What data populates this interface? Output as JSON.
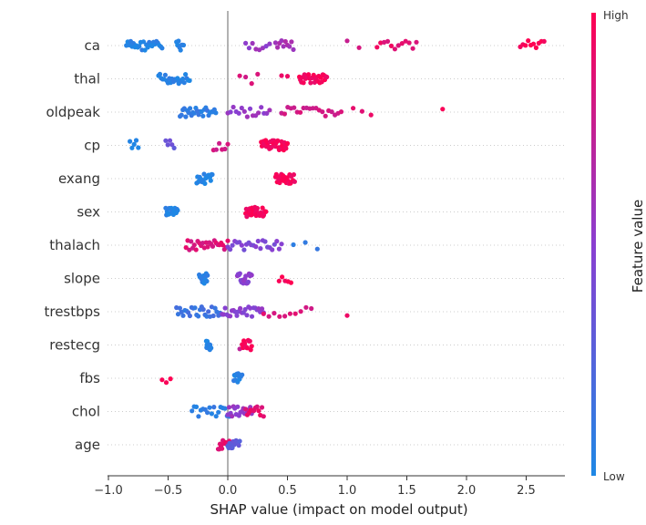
{
  "chart_data": {
    "type": "scatter",
    "subtype": "shap-beeswarm",
    "xlabel": "SHAP value (impact on model output)",
    "xlim": [
      -1.0,
      2.8
    ],
    "xticks": [
      -1.0,
      -0.5,
      0.0,
      0.5,
      1.0,
      1.5,
      2.0,
      2.5
    ],
    "xtick_labels": [
      "−1.0",
      "−0.5",
      "0.0",
      "0.5",
      "1.0",
      "1.5",
      "2.0",
      "2.5"
    ],
    "zero_line": 0.0,
    "colorbar": {
      "title": "Feature value",
      "high_label": "High",
      "low_label": "Low",
      "low_color": "#1e88e5",
      "high_color": "#ff0052"
    },
    "features": [
      {
        "name": "ca",
        "clusters": [
          {
            "min": -0.85,
            "max": -0.55,
            "n": 26,
            "v": 0.03
          },
          {
            "min": -0.43,
            "max": -0.37,
            "n": 8,
            "v": 0.05
          },
          {
            "min": 0.15,
            "max": 0.35,
            "n": 8,
            "v": 0.55
          },
          {
            "min": 0.4,
            "max": 0.55,
            "n": 10,
            "v": 0.6
          },
          {
            "min": 1.0,
            "max": 1.1,
            "n": 2,
            "v": 0.8
          },
          {
            "min": 1.25,
            "max": 1.58,
            "n": 12,
            "v": 0.9
          },
          {
            "min": 2.45,
            "max": 2.65,
            "n": 10,
            "v": 1.0
          }
        ]
      },
      {
        "name": "thal",
        "clusters": [
          {
            "min": -0.58,
            "max": -0.32,
            "n": 24,
            "v": 0.03
          },
          {
            "min": 0.1,
            "max": 0.25,
            "n": 4,
            "v": 0.85
          },
          {
            "min": 0.45,
            "max": 0.5,
            "n": 2,
            "v": 0.9
          },
          {
            "min": 0.6,
            "max": 0.83,
            "n": 28,
            "v": 0.96
          }
        ]
      },
      {
        "name": "oldpeak",
        "clusters": [
          {
            "min": -0.4,
            "max": -0.1,
            "n": 26,
            "v": 0.08
          },
          {
            "min": 0.0,
            "max": 0.35,
            "n": 16,
            "v": 0.55
          },
          {
            "min": 0.45,
            "max": 0.95,
            "n": 20,
            "v": 0.8
          },
          {
            "min": 1.05,
            "max": 1.2,
            "n": 3,
            "v": 0.9
          },
          {
            "min": 1.8,
            "max": 1.85,
            "n": 1,
            "v": 0.95
          }
        ]
      },
      {
        "name": "cp",
        "clusters": [
          {
            "min": -0.82,
            "max": -0.75,
            "n": 5,
            "v": 0.03
          },
          {
            "min": -0.52,
            "max": -0.45,
            "n": 5,
            "v": 0.35
          },
          {
            "min": -0.12,
            "max": 0.0,
            "n": 6,
            "v": 0.8
          },
          {
            "min": 0.28,
            "max": 0.5,
            "n": 36,
            "v": 0.97
          }
        ]
      },
      {
        "name": "exang",
        "clusters": [
          {
            "min": -0.26,
            "max": -0.13,
            "n": 22,
            "v": 0.03
          },
          {
            "min": 0.4,
            "max": 0.56,
            "n": 24,
            "v": 0.96
          }
        ]
      },
      {
        "name": "sex",
        "clusters": [
          {
            "min": -0.52,
            "max": -0.42,
            "n": 18,
            "v": 0.03
          },
          {
            "min": 0.15,
            "max": 0.32,
            "n": 36,
            "v": 0.96
          }
        ]
      },
      {
        "name": "thalach",
        "clusters": [
          {
            "min": -0.35,
            "max": 0.0,
            "n": 26,
            "v": 0.85
          },
          {
            "min": 0.0,
            "max": 0.45,
            "n": 24,
            "v": 0.45
          },
          {
            "min": 0.55,
            "max": 0.75,
            "n": 3,
            "v": 0.1
          }
        ]
      },
      {
        "name": "slope",
        "clusters": [
          {
            "min": -0.24,
            "max": -0.17,
            "n": 14,
            "v": 0.03
          },
          {
            "min": 0.08,
            "max": 0.2,
            "n": 18,
            "v": 0.5
          },
          {
            "min": 0.43,
            "max": 0.53,
            "n": 5,
            "v": 0.96
          }
        ]
      },
      {
        "name": "trestbps",
        "clusters": [
          {
            "min": -0.43,
            "max": -0.05,
            "n": 28,
            "v": 0.15
          },
          {
            "min": -0.05,
            "max": 0.3,
            "n": 26,
            "v": 0.5
          },
          {
            "min": 0.3,
            "max": 0.7,
            "n": 10,
            "v": 0.85
          },
          {
            "min": 1.0,
            "max": 1.05,
            "n": 1,
            "v": 0.97
          }
        ]
      },
      {
        "name": "restecg",
        "clusters": [
          {
            "min": -0.18,
            "max": -0.14,
            "n": 16,
            "v": 0.03
          },
          {
            "min": 0.1,
            "max": 0.12,
            "n": 1,
            "v": 0.75
          },
          {
            "min": 0.12,
            "max": 0.2,
            "n": 12,
            "v": 0.96
          }
        ]
      },
      {
        "name": "fbs",
        "clusters": [
          {
            "min": -0.55,
            "max": -0.48,
            "n": 3,
            "v": 0.97
          },
          {
            "min": 0.05,
            "max": 0.12,
            "n": 14,
            "v": 0.03
          }
        ]
      },
      {
        "name": "chol",
        "clusters": [
          {
            "min": -0.3,
            "max": 0.05,
            "n": 20,
            "v": 0.08
          },
          {
            "min": 0.0,
            "max": 0.2,
            "n": 18,
            "v": 0.55
          },
          {
            "min": 0.15,
            "max": 0.3,
            "n": 12,
            "v": 0.9
          }
        ]
      },
      {
        "name": "age",
        "clusters": [
          {
            "min": -0.08,
            "max": 0.02,
            "n": 14,
            "v": 0.9
          },
          {
            "min": 0.0,
            "max": 0.1,
            "n": 14,
            "v": 0.3
          }
        ]
      }
    ]
  }
}
